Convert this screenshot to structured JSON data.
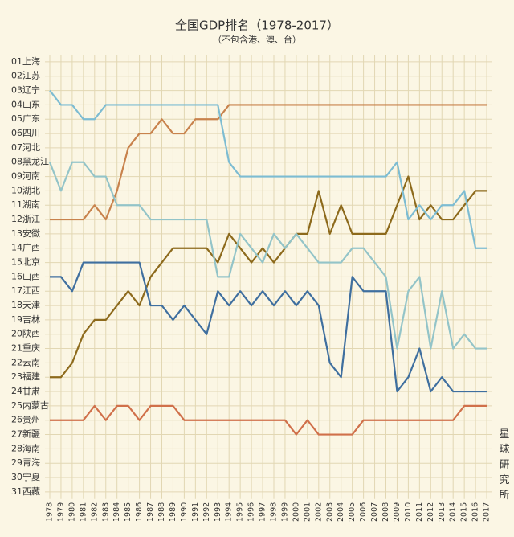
{
  "chart_data": {
    "type": "line",
    "title": "全国GDP排名（1978-2017）",
    "subtitle": "（不包含港、澳、台）",
    "watermark": "星球研究所",
    "categories": [
      "1978",
      "1979",
      "1980",
      "1981",
      "1982",
      "1983",
      "1984",
      "1985",
      "1986",
      "1987",
      "1988",
      "1989",
      "1990",
      "1991",
      "1992",
      "1993",
      "1994",
      "1995",
      "1996",
      "1997",
      "1998",
      "1999",
      "2000",
      "2001",
      "2002",
      "2003",
      "2004",
      "2005",
      "2006",
      "2007",
      "2008",
      "2009",
      "2010",
      "2011",
      "2012",
      "2013",
      "2014",
      "2015",
      "2016",
      "2017"
    ],
    "ylim": [
      31.5,
      0.5
    ],
    "yticks": [
      {
        "value": 1,
        "label": "01上海"
      },
      {
        "value": 2,
        "label": "02江苏"
      },
      {
        "value": 3,
        "label": "03辽宁"
      },
      {
        "value": 4,
        "label": "04山东"
      },
      {
        "value": 5,
        "label": "05广东"
      },
      {
        "value": 6,
        "label": "06四川"
      },
      {
        "value": 7,
        "label": "07河北"
      },
      {
        "value": 8,
        "label": "08黑龙江"
      },
      {
        "value": 9,
        "label": "09河南"
      },
      {
        "value": 10,
        "label": "10湖北"
      },
      {
        "value": 11,
        "label": "11湖南"
      },
      {
        "value": 12,
        "label": "12浙江"
      },
      {
        "value": 13,
        "label": "13安徽"
      },
      {
        "value": 14,
        "label": "14广西"
      },
      {
        "value": 15,
        "label": "15北京"
      },
      {
        "value": 16,
        "label": "16山西"
      },
      {
        "value": 17,
        "label": "17江西"
      },
      {
        "value": 18,
        "label": "18天津"
      },
      {
        "value": 19,
        "label": "19吉林"
      },
      {
        "value": 20,
        "label": "20陕西"
      },
      {
        "value": 21,
        "label": "21重庆"
      },
      {
        "value": 22,
        "label": "22云南"
      },
      {
        "value": 23,
        "label": "23福建"
      },
      {
        "value": 24,
        "label": "24甘肃"
      },
      {
        "value": 25,
        "label": "25内蒙古"
      },
      {
        "value": 26,
        "label": "26贵州"
      },
      {
        "value": 27,
        "label": "27新疆"
      },
      {
        "value": 28,
        "label": "28海南"
      },
      {
        "value": 29,
        "label": "29青海"
      },
      {
        "value": 30,
        "label": "30宁夏"
      },
      {
        "value": 31,
        "label": "31西藏"
      }
    ],
    "grid": true,
    "series": [
      {
        "color": "#c8824c",
        "values": [
          12,
          12,
          12,
          12,
          11,
          12,
          10,
          7,
          6,
          6,
          5,
          6,
          6,
          5,
          5,
          5,
          4,
          4,
          4,
          4,
          4,
          4,
          4,
          4,
          4,
          4,
          4,
          4,
          4,
          4,
          4,
          4,
          4,
          4,
          4,
          4,
          4,
          4,
          4,
          4
        ]
      },
      {
        "color": "#8d6a1c",
        "values": [
          23,
          23,
          22,
          20,
          19,
          19,
          18,
          17,
          18,
          16,
          15,
          14,
          14,
          14,
          14,
          15,
          13,
          14,
          15,
          14,
          15,
          14,
          13,
          13,
          10,
          13,
          11,
          13,
          13,
          13,
          13,
          11,
          9,
          12,
          11,
          12,
          12,
          11,
          10,
          10
        ]
      },
      {
        "color": "#7dbcd2",
        "values": [
          3,
          4,
          4,
          5,
          5,
          4,
          4,
          4,
          4,
          4,
          4,
          4,
          4,
          4,
          4,
          4,
          8,
          9,
          9,
          9,
          9,
          9,
          9,
          9,
          9,
          9,
          9,
          9,
          9,
          9,
          9,
          8,
          12,
          11,
          12,
          11,
          11,
          10,
          14,
          14
        ]
      },
      {
        "color": "#93c4c8",
        "values": [
          8,
          10,
          8,
          8,
          9,
          9,
          11,
          11,
          11,
          12,
          12,
          12,
          12,
          12,
          12,
          16,
          16,
          13,
          14,
          15,
          13,
          14,
          13,
          14,
          15,
          15,
          15,
          14,
          14,
          15,
          16,
          21,
          17,
          16,
          21,
          17,
          21,
          20,
          21,
          21
        ]
      },
      {
        "color": "#3f6f9f",
        "values": [
          16,
          16,
          17,
          15,
          15,
          15,
          15,
          15,
          15,
          18,
          18,
          19,
          18,
          19,
          20,
          17,
          18,
          17,
          18,
          17,
          18,
          17,
          18,
          17,
          18,
          22,
          23,
          16,
          17,
          17,
          17,
          24,
          23,
          21,
          24,
          23,
          24,
          24,
          24,
          24
        ]
      },
      {
        "color": "#d0704a",
        "values": [
          26,
          26,
          26,
          26,
          25,
          26,
          25,
          25,
          26,
          25,
          25,
          25,
          26,
          26,
          26,
          26,
          26,
          26,
          26,
          26,
          26,
          26,
          27,
          26,
          27,
          27,
          27,
          27,
          26,
          26,
          26,
          26,
          26,
          26,
          26,
          26,
          26,
          25,
          25,
          25
        ]
      }
    ]
  }
}
